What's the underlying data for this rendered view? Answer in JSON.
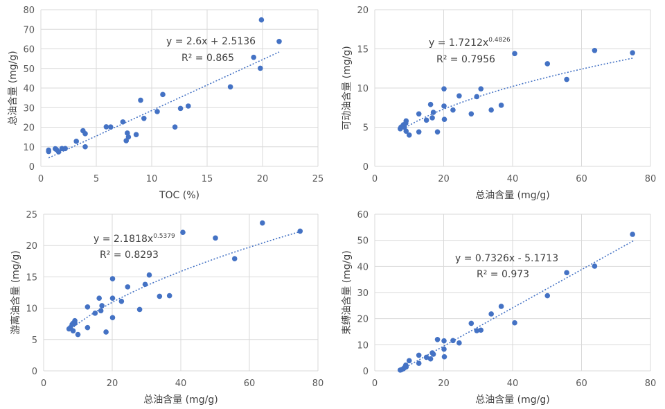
{
  "chart_data": [
    {
      "type": "scatter",
      "xlabel": "TOC (%)",
      "ylabel": "总油含量 (mg/g)",
      "xlim": [
        0,
        25
      ],
      "ylim": [
        0,
        80
      ],
      "x_ticks": [
        "0",
        "5",
        "10",
        "15",
        "20",
        "25"
      ],
      "y_ticks": [
        "0",
        "10",
        "20",
        "30",
        "40",
        "50",
        "60",
        "70",
        "80"
      ],
      "grid": true,
      "trendline": {
        "kind": "linear",
        "a": 2.6,
        "b": 2.5136,
        "x_range": [
          0.7,
          21.5
        ]
      },
      "equation": {
        "main": "y = 2.6x + 2.5136",
        "sup": "",
        "r2": "R² = 0.865"
      },
      "points": [
        [
          0.7,
          7.6
        ],
        [
          0.7,
          8.3
        ],
        [
          1.3,
          9.0
        ],
        [
          1.4,
          8.6
        ],
        [
          1.6,
          7.4
        ],
        [
          1.9,
          9.1
        ],
        [
          2.2,
          9.1
        ],
        [
          3.2,
          12.8
        ],
        [
          3.8,
          18.2
        ],
        [
          4.0,
          16.7
        ],
        [
          4.0,
          10.0
        ],
        [
          5.9,
          20.2
        ],
        [
          6.3,
          20.1
        ],
        [
          7.4,
          22.7
        ],
        [
          7.7,
          13.1
        ],
        [
          7.8,
          17.0
        ],
        [
          7.9,
          15.0
        ],
        [
          8.6,
          16.2
        ],
        [
          9.0,
          33.8
        ],
        [
          9.3,
          24.5
        ],
        [
          10.5,
          28.0
        ],
        [
          11.0,
          36.7
        ],
        [
          12.1,
          20.1
        ],
        [
          12.6,
          29.6
        ],
        [
          13.3,
          30.8
        ],
        [
          17.1,
          40.6
        ],
        [
          19.2,
          55.7
        ],
        [
          19.8,
          50.1
        ],
        [
          19.9,
          74.8
        ],
        [
          21.5,
          63.8
        ]
      ]
    },
    {
      "type": "scatter",
      "xlabel": "总油含量 (mg/g)",
      "ylabel": "可动油含量 (mg/g)",
      "xlim": [
        0,
        80
      ],
      "ylim": [
        0,
        20
      ],
      "x_ticks": [
        "0",
        "20",
        "40",
        "60",
        "80"
      ],
      "y_ticks": [
        "0",
        "5",
        "10",
        "15",
        "20"
      ],
      "grid": true,
      "trendline": {
        "kind": "power",
        "a": 1.7212,
        "b": 0.4826,
        "x_range": [
          7.4,
          75
        ]
      },
      "equation": {
        "main": "y = 1.7212x",
        "sup": "0.4826",
        "r2": "R² = 0.7956"
      },
      "points": [
        [
          7.4,
          4.8
        ],
        [
          7.6,
          5.0
        ],
        [
          8.0,
          5.1
        ],
        [
          8.3,
          5.3
        ],
        [
          8.6,
          5.0
        ],
        [
          9.0,
          5.5
        ],
        [
          9.1,
          5.8
        ],
        [
          9.1,
          4.5
        ],
        [
          10.0,
          4.0
        ],
        [
          12.8,
          6.7
        ],
        [
          12.8,
          4.4
        ],
        [
          15.0,
          5.9
        ],
        [
          16.2,
          7.9
        ],
        [
          16.7,
          6.2
        ],
        [
          17.0,
          6.9
        ],
        [
          18.2,
          4.4
        ],
        [
          20.1,
          9.9
        ],
        [
          20.1,
          7.7
        ],
        [
          20.2,
          6.0
        ],
        [
          22.7,
          7.2
        ],
        [
          24.5,
          9.0
        ],
        [
          28.0,
          6.7
        ],
        [
          29.6,
          8.9
        ],
        [
          30.8,
          9.9
        ],
        [
          33.8,
          7.2
        ],
        [
          36.7,
          7.8
        ],
        [
          40.6,
          14.4
        ],
        [
          50.1,
          13.1
        ],
        [
          55.7,
          11.1
        ],
        [
          63.8,
          14.8
        ],
        [
          74.8,
          14.5
        ]
      ]
    },
    {
      "type": "scatter",
      "xlabel": "总油含量 (mg/g)",
      "ylabel": "游离油含量 (mg/g)",
      "xlim": [
        0,
        80
      ],
      "ylim": [
        0,
        25
      ],
      "x_ticks": [
        "0",
        "20",
        "40",
        "60",
        "80"
      ],
      "y_ticks": [
        "0",
        "5",
        "10",
        "15",
        "20",
        "25"
      ],
      "grid": true,
      "trendline": {
        "kind": "power",
        "a": 2.1818,
        "b": 0.5379,
        "x_range": [
          7.4,
          75
        ]
      },
      "equation": {
        "main": "y = 2.1818x",
        "sup": "0.5379",
        "r2": "R² = 0.8293"
      },
      "points": [
        [
          7.4,
          6.7
        ],
        [
          7.8,
          6.9
        ],
        [
          8.3,
          7.4
        ],
        [
          8.6,
          7.6
        ],
        [
          8.6,
          6.4
        ],
        [
          9.1,
          7.6
        ],
        [
          9.1,
          8.0
        ],
        [
          10.0,
          5.8
        ],
        [
          12.8,
          6.9
        ],
        [
          12.8,
          10.2
        ],
        [
          15.0,
          9.2
        ],
        [
          16.2,
          11.6
        ],
        [
          16.7,
          9.6
        ],
        [
          17.0,
          10.4
        ],
        [
          18.2,
          6.2
        ],
        [
          20.1,
          11.6
        ],
        [
          20.1,
          14.7
        ],
        [
          20.1,
          8.5
        ],
        [
          22.7,
          11.1
        ],
        [
          24.5,
          13.4
        ],
        [
          28.0,
          9.8
        ],
        [
          29.6,
          13.8
        ],
        [
          30.8,
          15.3
        ],
        [
          33.8,
          11.9
        ],
        [
          36.7,
          12.0
        ],
        [
          40.6,
          22.1
        ],
        [
          50.1,
          21.2
        ],
        [
          55.7,
          17.9
        ],
        [
          63.8,
          23.6
        ],
        [
          74.8,
          22.3
        ]
      ]
    },
    {
      "type": "scatter",
      "xlabel": "总油含量 (mg/g)",
      "ylabel": "束缚油含量 (mg/g)",
      "xlim": [
        0,
        80
      ],
      "ylim": [
        0,
        60
      ],
      "x_ticks": [
        "0",
        "20",
        "40",
        "60",
        "80"
      ],
      "y_ticks": [
        "0",
        "10",
        "20",
        "30",
        "40",
        "50",
        "60"
      ],
      "grid": true,
      "trendline": {
        "kind": "linear",
        "a": 0.7326,
        "b": -5.1713,
        "x_range": [
          7.4,
          75
        ]
      },
      "equation": {
        "main": "y = 0.7326x - 5.1713",
        "sup": "",
        "r2": "R² = 0.973"
      },
      "points": [
        [
          7.4,
          0.3
        ],
        [
          7.8,
          0.5
        ],
        [
          8.3,
          0.8
        ],
        [
          8.6,
          1.2
        ],
        [
          9.0,
          2.2
        ],
        [
          9.1,
          1.5
        ],
        [
          10.0,
          3.9
        ],
        [
          12.8,
          2.9
        ],
        [
          12.8,
          6.0
        ],
        [
          15.0,
          5.2
        ],
        [
          16.2,
          4.6
        ],
        [
          16.7,
          6.9
        ],
        [
          17.0,
          6.4
        ],
        [
          18.2,
          12.0
        ],
        [
          20.1,
          11.5
        ],
        [
          20.1,
          8.3
        ],
        [
          20.2,
          5.4
        ],
        [
          22.7,
          11.6
        ],
        [
          24.5,
          10.7
        ],
        [
          28.0,
          18.2
        ],
        [
          29.6,
          15.4
        ],
        [
          30.8,
          15.6
        ],
        [
          33.8,
          21.8
        ],
        [
          36.7,
          24.7
        ],
        [
          40.6,
          18.4
        ],
        [
          50.1,
          28.8
        ],
        [
          55.7,
          37.6
        ],
        [
          63.8,
          40.1
        ],
        [
          74.8,
          52.3
        ]
      ]
    }
  ]
}
